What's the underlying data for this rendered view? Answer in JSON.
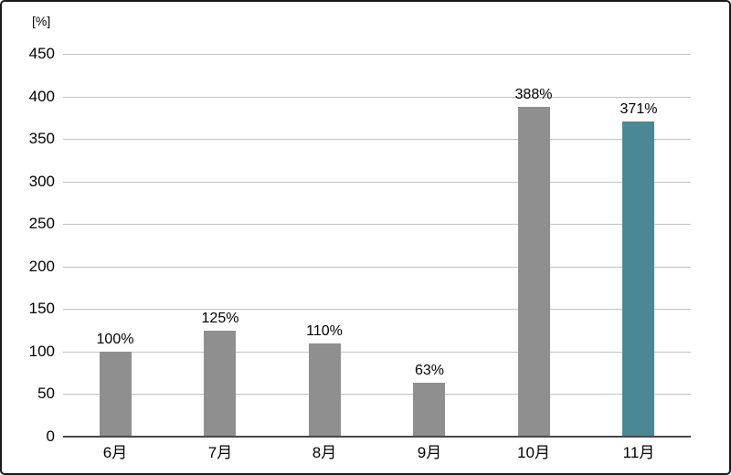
{
  "chart": {
    "unit_label": "[%]",
    "colors": {
      "bar_default": "#8f8f8f",
      "bar_highlight": "#4c8794",
      "gridline": "#c2c2c2",
      "axis_line": "#474747",
      "text": "#000000",
      "frame_border": "#1a1a1a",
      "background": "#ffffff"
    }
  },
  "chart_data": {
    "type": "bar",
    "title": "",
    "xlabel": "",
    "ylabel": "[%]",
    "categories": [
      "6月",
      "7月",
      "8月",
      "9月",
      "10月",
      "11月"
    ],
    "values": [
      100,
      125,
      110,
      63,
      388,
      371
    ],
    "data_labels": [
      "100%",
      "125%",
      "110%",
      "63%",
      "388%",
      "371%"
    ],
    "highlight_index": 5,
    "ylim": [
      0,
      450
    ],
    "yticks": [
      0,
      50,
      100,
      150,
      200,
      250,
      300,
      350,
      400,
      450
    ],
    "grid": true,
    "legend": false
  }
}
